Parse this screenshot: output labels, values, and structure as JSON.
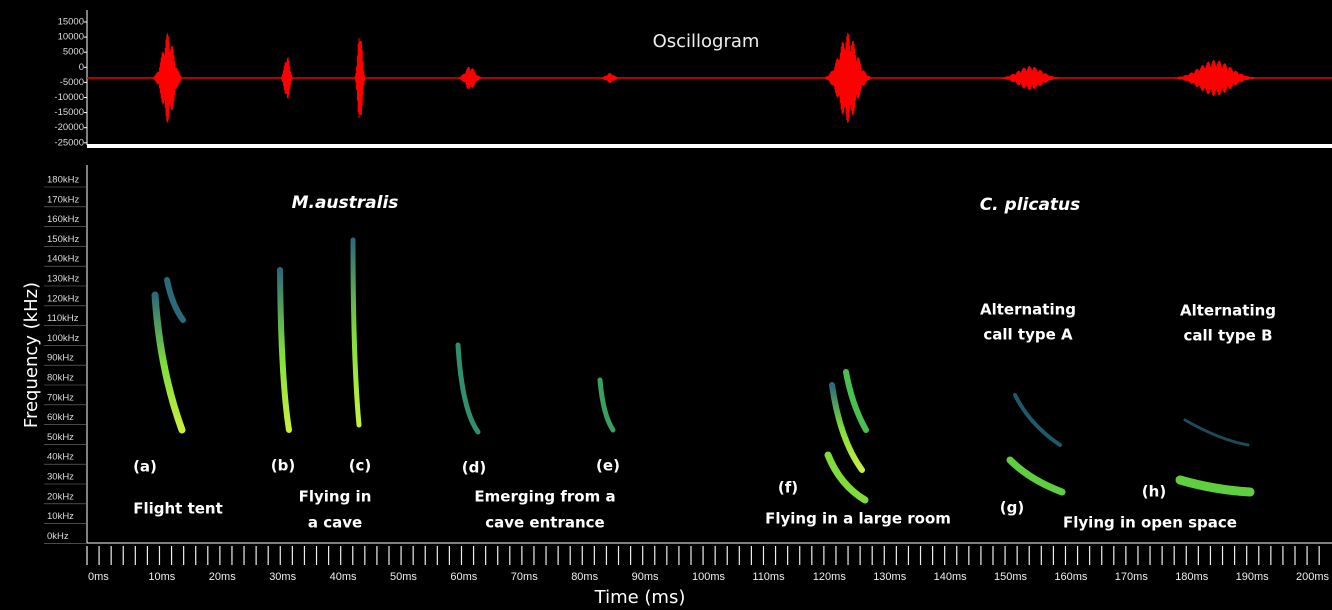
{
  "oscillogram": {
    "title": "Oscillogram",
    "yticks": [
      "15000",
      "10000",
      "5000",
      "0",
      "-5000",
      "-10000",
      "-15000",
      "-20000",
      "-25000"
    ]
  },
  "spectrogram": {
    "species": [
      "M.australis",
      "C. plicatus"
    ],
    "ylabel": "Frequency (kHz)",
    "yticks": [
      "180kHz",
      "170kHz",
      "160kHz",
      "150kHz",
      "140kHz",
      "130kHz",
      "120kHz",
      "110kHz",
      "100kHz",
      "90kHz",
      "80kHz",
      "70kHz",
      "60kHz",
      "50kHz",
      "40kHz",
      "30kHz",
      "20kHz",
      "10kHz",
      "0kHz"
    ],
    "xlabel": "Time (ms)",
    "xticks": [
      "0ms",
      "10ms",
      "20ms",
      "30ms",
      "40ms",
      "50ms",
      "60ms",
      "70ms",
      "80ms",
      "90ms",
      "100ms",
      "110ms",
      "120ms",
      "130ms",
      "140ms",
      "150ms",
      "160ms",
      "170ms",
      "180ms",
      "190ms",
      "200ms"
    ],
    "call_letters": [
      "(a)",
      "(b)",
      "(c)",
      "(d)",
      "(e)",
      "(f)",
      "(g)",
      "(h)"
    ],
    "descriptions": [
      [
        "Flight tent"
      ],
      [
        "Flying in",
        "a cave"
      ],
      [
        "Emerging from a",
        "cave entrance"
      ],
      [
        "Flying in a large room"
      ],
      [
        "Flying in open space"
      ]
    ],
    "call_types": [
      [
        "Alternating",
        "call type A"
      ],
      [
        "Alternating",
        "call type B"
      ]
    ]
  }
}
